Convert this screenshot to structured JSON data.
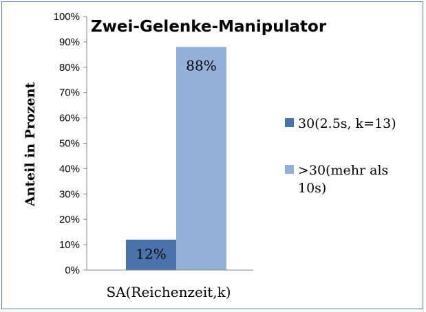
{
  "chart_data": {
    "type": "bar",
    "title": "Zwei-Gelenke-Manipulator",
    "xlabel": "",
    "ylabel": "Anteil in Prozent",
    "categories": [
      "SA(Reichenzeit,k)"
    ],
    "ylim": [
      0,
      100
    ],
    "yticks": [
      "0%",
      "10%",
      "20%",
      "30%",
      "40%",
      "50%",
      "60%",
      "70%",
      "80%",
      "90%",
      "100%"
    ],
    "grid": false,
    "legend_position": "right",
    "series": [
      {
        "name": "30(2.5s, k=13)",
        "values": [
          12
        ],
        "data_label": "12%",
        "color": "#4a73ab"
      },
      {
        "name": ">30(mehr als 10s)",
        "legend_lines": [
          ">30(mehr als",
          "10s)"
        ],
        "values": [
          88
        ],
        "data_label": "88%",
        "color": "#95b0d8"
      }
    ]
  }
}
